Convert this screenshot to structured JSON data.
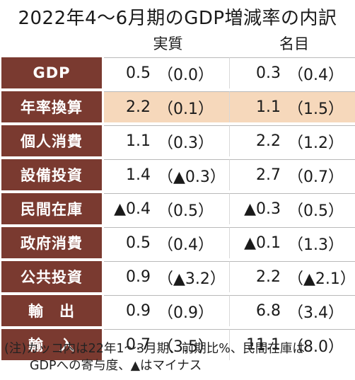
{
  "title": "2022年4〜6月期のGDP増減率の内訳",
  "columns": {
    "real": "実質",
    "nominal": "名目"
  },
  "rows": [
    {
      "label": "GDP",
      "real": "0.5",
      "real_prev": "（0.0）",
      "nominal": "0.3",
      "nominal_prev": "（0.4）",
      "highlight": false
    },
    {
      "label": "年率換算",
      "real": "2.2",
      "real_prev": "（0.1）",
      "nominal": "1.1",
      "nominal_prev": "（1.5）",
      "highlight": true
    },
    {
      "label": "個人消費",
      "real": "1.1",
      "real_prev": "（0.3）",
      "nominal": "2.2",
      "nominal_prev": "（1.2）",
      "highlight": false
    },
    {
      "label": "設備投資",
      "real": "1.4",
      "real_prev": "（▲0.3）",
      "nominal": "2.7",
      "nominal_prev": "（0.7）",
      "highlight": false
    },
    {
      "label": "民間在庫",
      "real": "▲0.4",
      "real_prev": "（0.5）",
      "nominal": "▲0.3",
      "nominal_prev": "（0.5）",
      "highlight": false
    },
    {
      "label": "政府消費",
      "real": "0.5",
      "real_prev": "（0.4）",
      "nominal": "▲0.1",
      "nominal_prev": "（1.3）",
      "highlight": false
    },
    {
      "label": "公共投資",
      "real": "0.9",
      "real_prev": "（▲3.2）",
      "nominal": "2.2",
      "nominal_prev": "（▲2.1）",
      "highlight": false
    },
    {
      "label": "輸　出",
      "real": "0.9",
      "real_prev": "（0.9）",
      "nominal": "6.8",
      "nominal_prev": "（3.4）",
      "highlight": false
    },
    {
      "label": "輸　入",
      "real": "0.7",
      "real_prev": "（3.5）",
      "nominal": "11.1",
      "nominal_prev": "（8.0）",
      "highlight": false
    }
  ],
  "note": {
    "line1": "(注)カッコ内は22年1〜3月期、前期比%、民間在庫は",
    "line2": "GDPへの寄与度、▲はマイナス"
  }
}
